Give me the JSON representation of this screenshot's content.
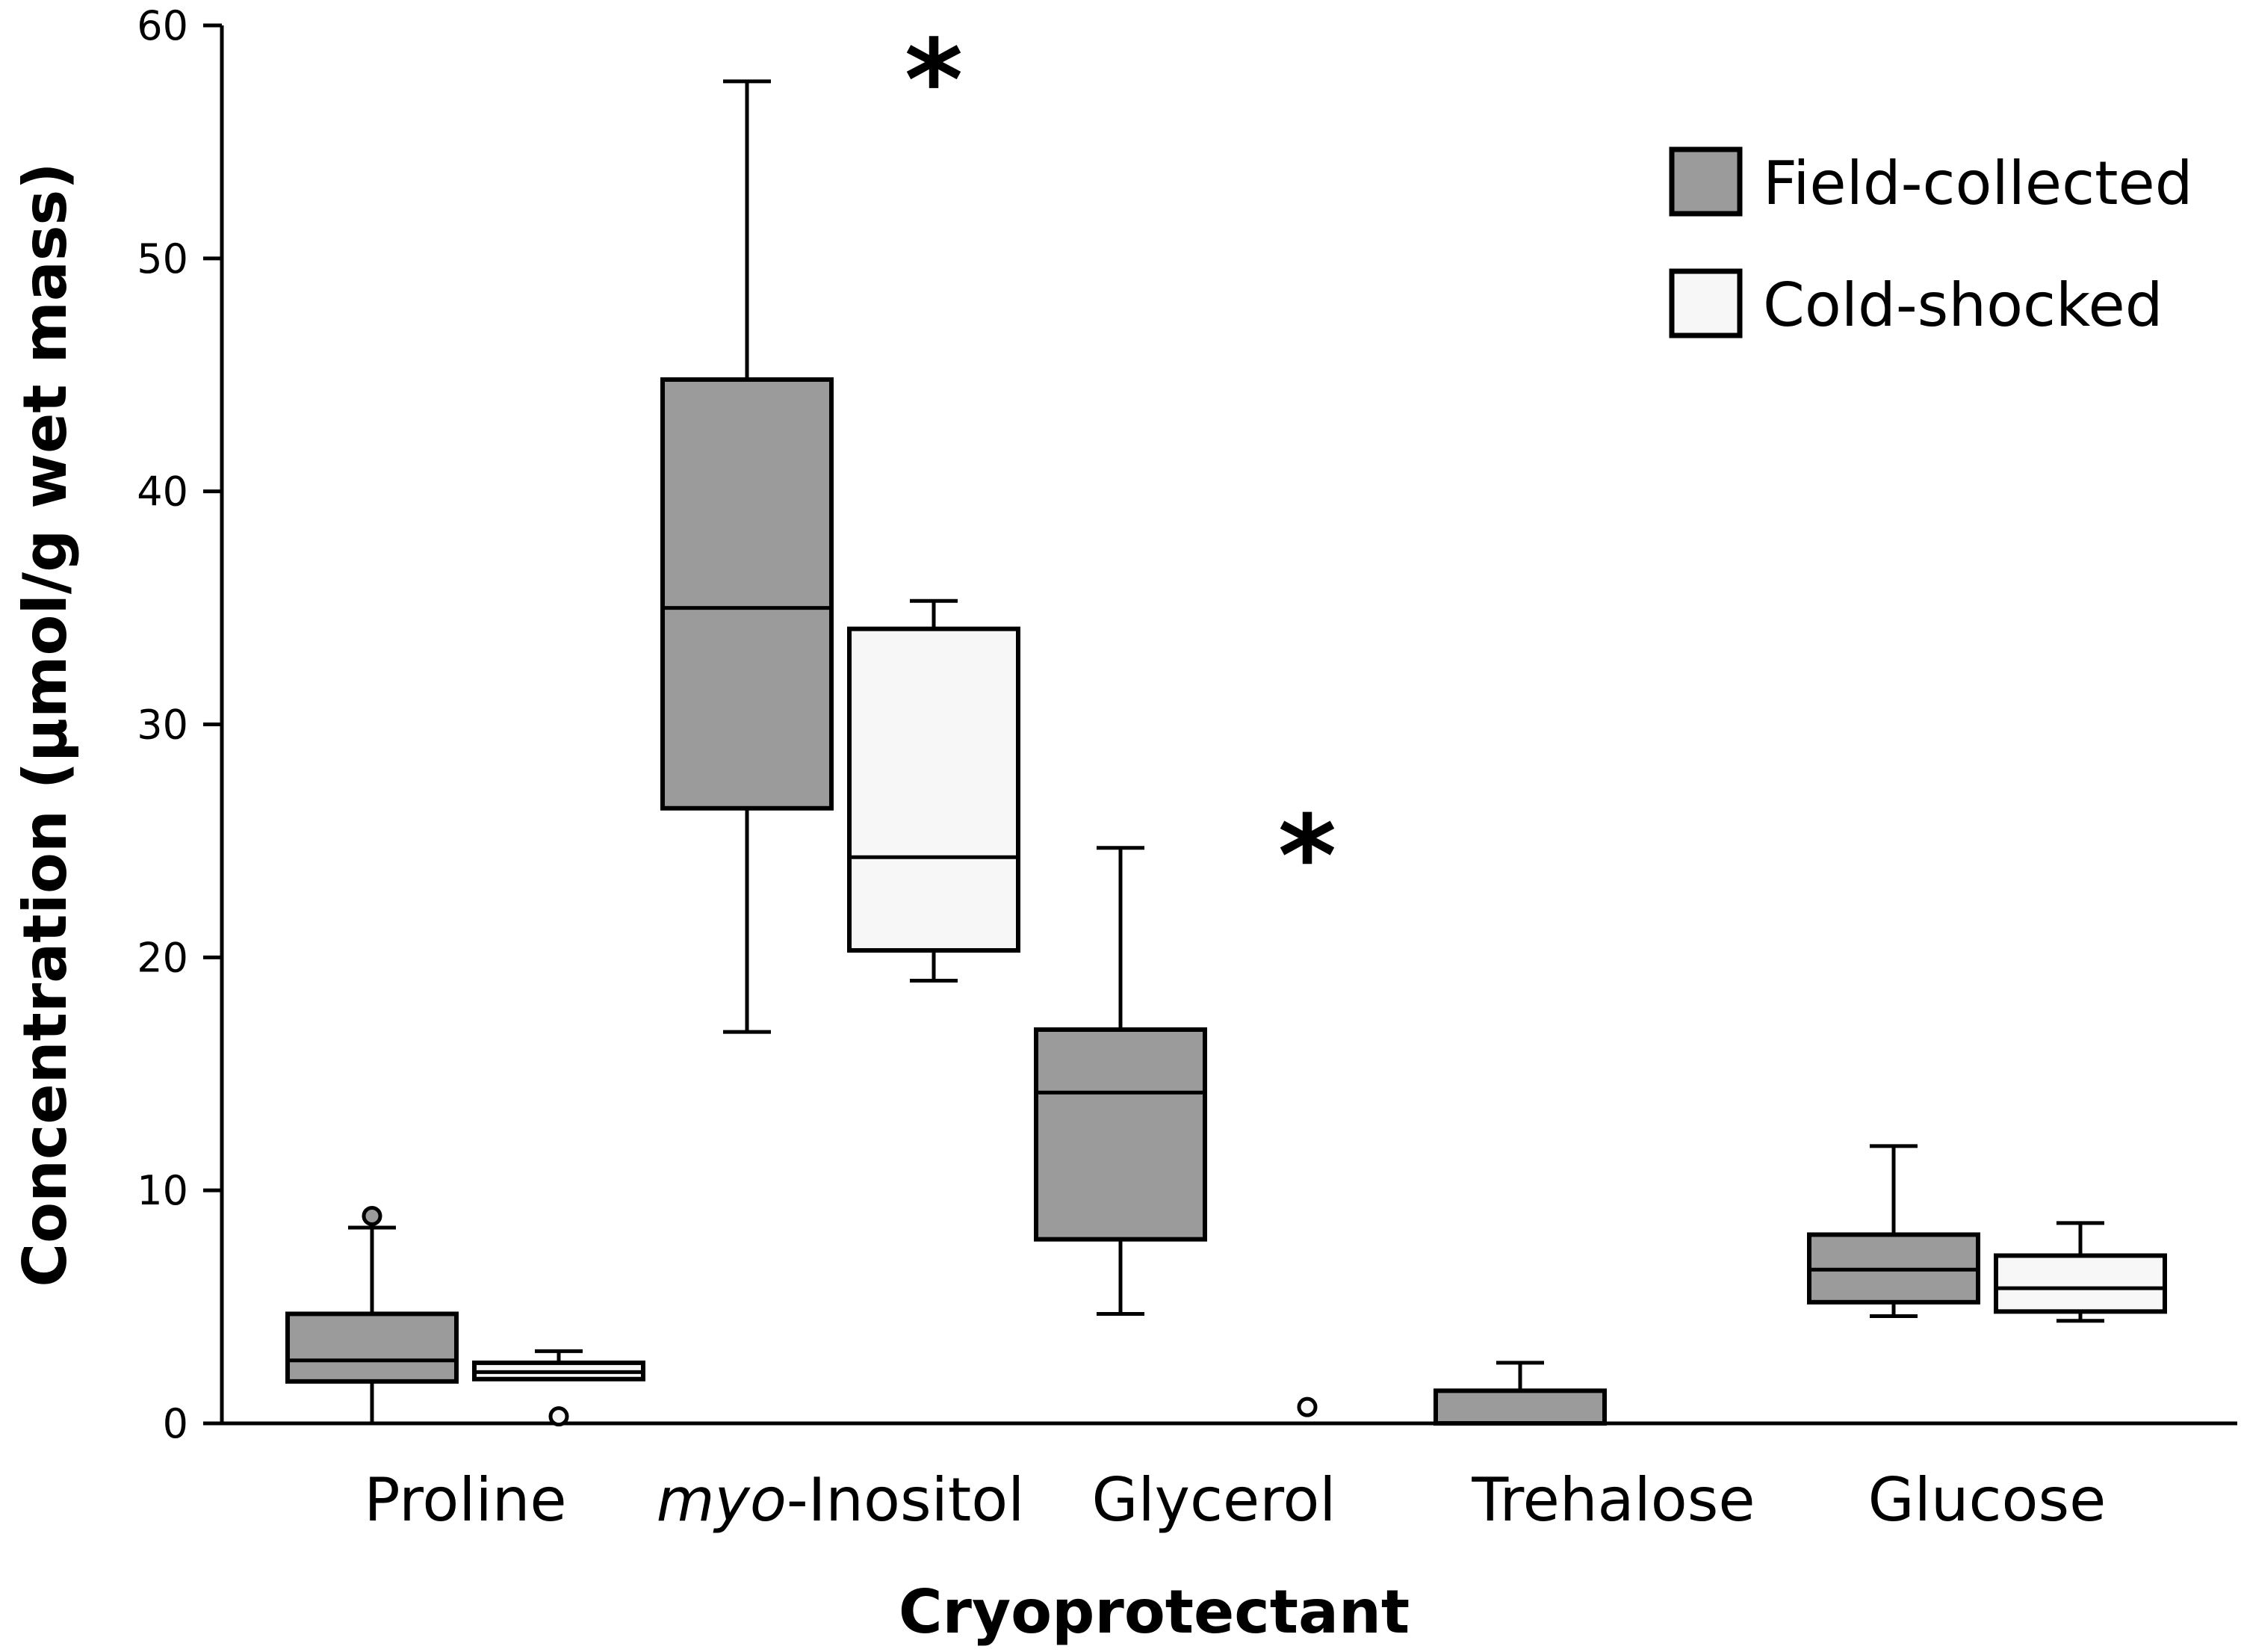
{
  "chart_data": {
    "type": "box",
    "ylabel": "Concentration (µmol/g wet mass)",
    "xlabel": "Cryoprotectant",
    "ylim": [
      0,
      60
    ],
    "yticks": [
      0,
      10,
      20,
      30,
      40,
      50,
      60
    ],
    "categories": [
      {
        "prefix": "",
        "italic": "",
        "suffix": "Proline"
      },
      {
        "prefix": "",
        "italic": "myo",
        "suffix": "-Inositol"
      },
      {
        "prefix": "",
        "italic": "",
        "suffix": "Glycerol"
      },
      {
        "prefix": "",
        "italic": "",
        "suffix": "Trehalose"
      },
      {
        "prefix": "",
        "italic": "",
        "suffix": "Glucose"
      }
    ],
    "series": [
      {
        "name": "Field-collected",
        "color": "#9b9b9b",
        "boxes": [
          {
            "category": "Proline",
            "whisker_low": 0,
            "q1": 1.8,
            "median": 2.7,
            "q3": 4.7,
            "whisker_high": 8.4,
            "outliers": [
              8.9
            ]
          },
          {
            "category": "myo-Inositol",
            "whisker_low": 16.8,
            "q1": 26.4,
            "median": 35.0,
            "q3": 44.8,
            "whisker_high": 57.6,
            "outliers": []
          },
          {
            "category": "Glycerol",
            "whisker_low": 4.7,
            "q1": 7.9,
            "median": 14.2,
            "q3": 16.9,
            "whisker_high": 24.7,
            "outliers": []
          },
          {
            "category": "Trehalose",
            "whisker_low": 0,
            "q1": 0,
            "median": 0,
            "q3": 1.4,
            "whisker_high": 2.6,
            "outliers": []
          },
          {
            "category": "Glucose",
            "whisker_low": 4.6,
            "q1": 5.2,
            "median": 6.6,
            "q3": 8.1,
            "whisker_high": 11.9,
            "outliers": []
          }
        ]
      },
      {
        "name": "Cold-shocked",
        "color": "#f7f7f7",
        "boxes": [
          {
            "category": "Proline",
            "whisker_low": 1.9,
            "q1": 1.9,
            "median": 2.2,
            "q3": 2.6,
            "whisker_high": 3.1,
            "outliers": [
              0.3
            ]
          },
          {
            "category": "myo-Inositol",
            "whisker_low": 19.0,
            "q1": 20.3,
            "median": 24.3,
            "q3": 34.1,
            "whisker_high": 35.3,
            "outliers": []
          },
          {
            "category": "Glycerol",
            "whisker_low": 0,
            "q1": 0,
            "median": 0,
            "q3": 0,
            "whisker_high": 0,
            "outliers": [
              0.7
            ]
          },
          {
            "category": "Trehalose",
            "whisker_low": 0,
            "q1": 0,
            "median": 0,
            "q3": 0,
            "whisker_high": 0,
            "outliers": []
          },
          {
            "category": "Glucose",
            "whisker_low": 4.4,
            "q1": 4.8,
            "median": 5.8,
            "q3": 7.2,
            "whisker_high": 8.6,
            "outliers": []
          }
        ]
      }
    ],
    "annotations": [
      {
        "text": "*",
        "category": "myo-Inositol",
        "y": 59.5
      },
      {
        "text": "*",
        "category": "Glycerol",
        "y": 26.2
      }
    ],
    "legend": {
      "position": "top-right"
    }
  }
}
